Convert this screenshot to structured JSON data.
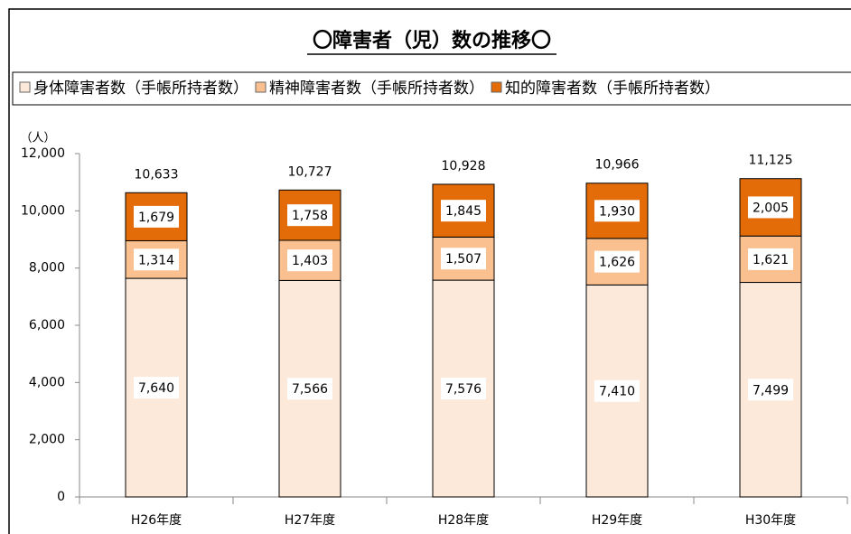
{
  "chart_data": {
    "type": "stacked_bar",
    "title": "〇障害者（児）数の推移〇",
    "y_unit_label": "（人）",
    "categories": [
      "H26年度",
      "H27年度",
      "H28年度",
      "H29年度",
      "H30年度"
    ],
    "series": [
      {
        "name": "身体障害者数（手帳所持者数）",
        "color": "#fde9d9",
        "values": [
          7640,
          7566,
          7576,
          7410,
          7499
        ],
        "value_labels": [
          "7,640",
          "7,566",
          "7,576",
          "7,410",
          "7,499"
        ]
      },
      {
        "name": "精神障害者数（手帳所持者数）",
        "color": "#fac090",
        "values": [
          1314,
          1403,
          1507,
          1626,
          1621
        ],
        "value_labels": [
          "1,314",
          "1,403",
          "1,507",
          "1,626",
          "1,621"
        ]
      },
      {
        "name": "知的障害者数（手帳所持者数）",
        "color": "#e36c09",
        "values": [
          1679,
          1758,
          1845,
          1930,
          2005
        ],
        "value_labels": [
          "1,679",
          "1,758",
          "1,845",
          "1,930",
          "2,005"
        ]
      }
    ],
    "totals": [
      10633,
      10727,
      10928,
      10966,
      11125
    ],
    "total_labels": [
      "10,633",
      "10,727",
      "10,928",
      "10,966",
      "11,125"
    ],
    "ylim": [
      0,
      12000
    ],
    "yticks": [
      0,
      {
        "value": 2000,
        "label": "2,000"
      },
      {
        "value": 4000,
        "label": "4,000"
      },
      {
        "value": 6000,
        "label": "6,000"
      },
      {
        "value": 8000,
        "label": "8,000"
      },
      {
        "value": 10000,
        "label": "10,000"
      },
      {
        "value": 12000,
        "label": "12,000"
      }
    ],
    "grid": false
  }
}
